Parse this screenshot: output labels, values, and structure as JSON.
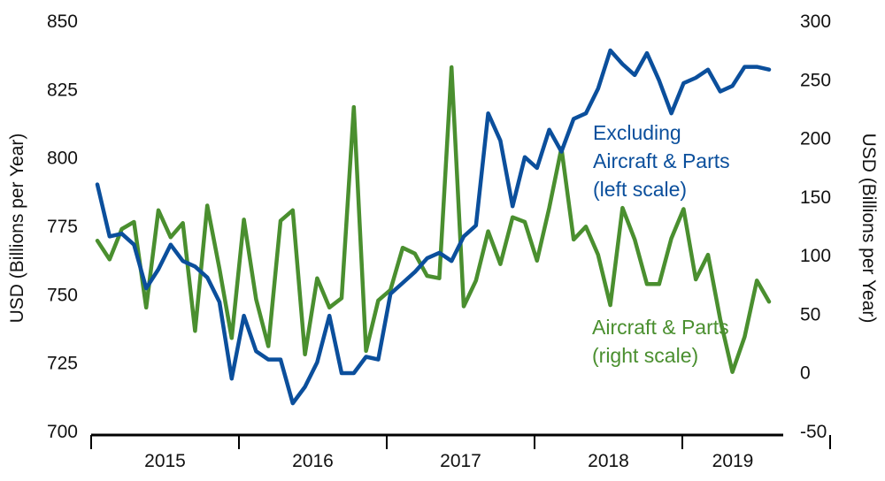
{
  "chart_data": {
    "type": "line",
    "title": "",
    "xlabel": "",
    "ylabel_left": "USD (Billions per Year)",
    "ylabel_right": "USD (Billions per Year)",
    "ylim_left": [
      700,
      850
    ],
    "ylim_right": [
      -50,
      300
    ],
    "yticks_left": [
      700,
      725,
      750,
      775,
      800,
      825,
      850
    ],
    "yticks_right": [
      -50,
      0,
      50,
      100,
      150,
      200,
      250,
      300
    ],
    "year_labels": [
      "2015",
      "2016",
      "2017",
      "2018",
      "2019"
    ],
    "x_start": "2014-12",
    "x_end": "2019-08",
    "grid": false,
    "series": [
      {
        "name": "Excluding Aircraft & Parts",
        "axis": "left",
        "color": "#0b4f9c",
        "annotation": [
          "Excluding",
          "Aircraft & Parts",
          "(left scale)"
        ],
        "values": [
          790,
          771,
          772,
          768,
          752,
          759,
          768,
          762,
          760,
          756,
          747,
          719,
          742,
          729,
          726,
          726,
          710,
          716,
          725,
          742,
          721,
          721,
          727,
          726,
          750,
          754,
          758,
          763,
          765,
          762,
          771,
          775,
          816,
          806,
          782,
          800,
          796,
          810,
          802,
          814,
          816,
          825,
          839,
          834,
          830,
          838,
          828,
          816,
          827,
          829,
          832,
          824,
          826,
          833,
          833,
          832
        ]
      },
      {
        "name": "Aircraft & Parts",
        "axis": "right",
        "color": "#4a8f2f",
        "annotation": [
          "Aircraft & Parts",
          "(right scale)"
        ],
        "values": [
          112,
          96,
          122,
          128,
          55,
          138,
          115,
          127,
          35,
          142,
          88,
          29,
          130,
          62,
          22,
          129,
          138,
          15,
          80,
          55,
          63,
          226,
          18,
          61,
          70,
          106,
          101,
          82,
          80,
          260,
          56,
          78,
          120,
          92,
          132,
          128,
          95,
          140,
          191,
          113,
          124,
          100,
          57,
          140,
          113,
          75,
          75,
          114,
          139,
          79,
          100,
          45,
          0,
          30,
          78,
          60
        ]
      }
    ]
  }
}
